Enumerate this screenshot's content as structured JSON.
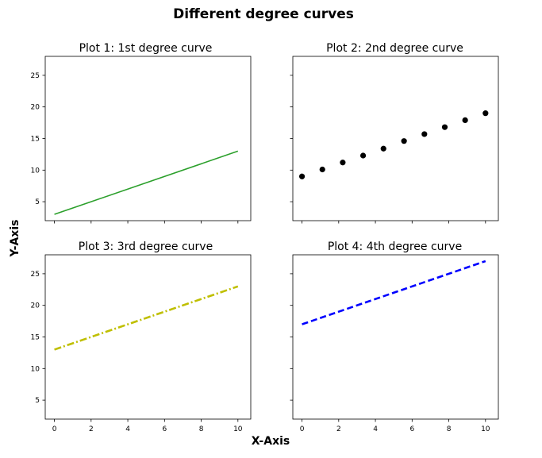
{
  "figure": {
    "title": "Different degree curves",
    "xlabel": "X-Axis",
    "ylabel": "Y-Axis"
  },
  "chart_data": [
    {
      "type": "line",
      "title": "Plot 1: 1st degree curve",
      "x": [
        0,
        10
      ],
      "y": [
        3,
        13
      ],
      "line_style": "solid",
      "color": "#2ca02c",
      "xlim": [
        -0.5,
        10.7
      ],
      "ylim": [
        2,
        28
      ],
      "xticks": [
        0,
        2,
        4,
        6,
        8,
        10
      ],
      "yticks": [
        5,
        10,
        15,
        20,
        25
      ],
      "show_xticklabels": false,
      "show_yticklabels": true
    },
    {
      "type": "scatter",
      "title": "Plot 2: 2nd degree curve",
      "x": [
        0,
        1.11,
        2.22,
        3.33,
        4.44,
        5.56,
        6.67,
        7.78,
        8.89,
        10
      ],
      "y": [
        9,
        10.1,
        11.2,
        12.3,
        13.4,
        14.6,
        15.7,
        16.8,
        17.9,
        19
      ],
      "marker": "circle",
      "color": "#000000",
      "xlim": [
        -0.5,
        10.7
      ],
      "ylim": [
        2,
        28
      ],
      "xticks": [
        0,
        2,
        4,
        6,
        8,
        10
      ],
      "yticks": [
        5,
        10,
        15,
        20,
        25
      ],
      "show_xticklabels": false,
      "show_yticklabels": false
    },
    {
      "type": "line",
      "title": "Plot 3: 3rd degree curve",
      "x": [
        0,
        10
      ],
      "y": [
        13,
        23
      ],
      "line_style": "dashdot",
      "color": "#bfbf00",
      "xlim": [
        -0.5,
        10.7
      ],
      "ylim": [
        2,
        28
      ],
      "xticks": [
        0,
        2,
        4,
        6,
        8,
        10
      ],
      "yticks": [
        5,
        10,
        15,
        20,
        25
      ],
      "show_xticklabels": true,
      "show_yticklabels": true
    },
    {
      "type": "line",
      "title": "Plot 4: 4th degree curve",
      "x": [
        0,
        10
      ],
      "y": [
        17,
        27
      ],
      "line_style": "dashed",
      "color": "#0000ff",
      "xlim": [
        -0.5,
        10.7
      ],
      "ylim": [
        2,
        28
      ],
      "xticks": [
        0,
        2,
        4,
        6,
        8,
        10
      ],
      "yticks": [
        5,
        10,
        15,
        20,
        25
      ],
      "show_xticklabels": true,
      "show_yticklabels": false
    }
  ]
}
